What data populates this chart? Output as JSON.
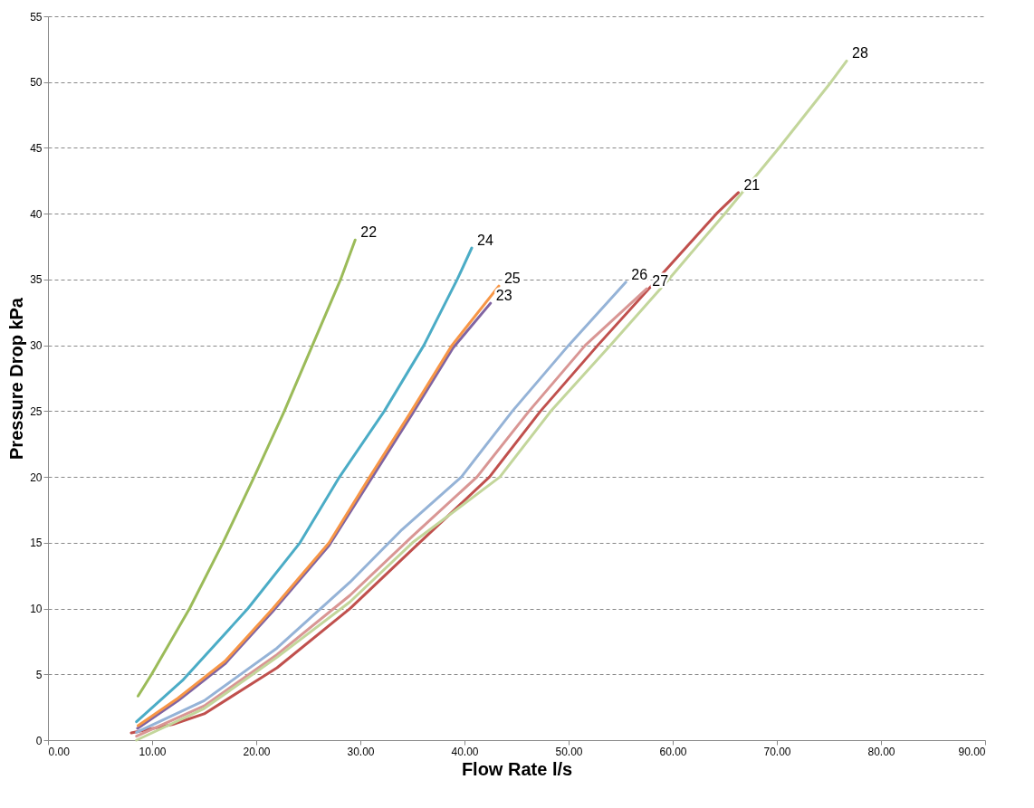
{
  "chart_data": {
    "type": "line",
    "xlabel": "Flow Rate l/s",
    "ylabel": "Pressure Drop kPa",
    "xlim": [
      0,
      90
    ],
    "xticks": [
      {
        "value": 0,
        "label": "0.00"
      },
      {
        "value": 10,
        "label": "10.00"
      },
      {
        "value": 20,
        "label": "20.00"
      },
      {
        "value": 30,
        "label": "30.00"
      },
      {
        "value": 40,
        "label": "40.00"
      },
      {
        "value": 50,
        "label": "50.00"
      },
      {
        "value": 60,
        "label": "60.00"
      },
      {
        "value": 70,
        "label": "70.00"
      },
      {
        "value": 80,
        "label": "80.00"
      },
      {
        "value": 90,
        "label": "90.00"
      }
    ],
    "ylim": [
      0,
      55
    ],
    "yticks": [
      0,
      5,
      10,
      15,
      20,
      25,
      30,
      35,
      40,
      45,
      50,
      55
    ],
    "grid": "y",
    "legend": false,
    "marker": "none",
    "line_style": "solid",
    "series": [
      {
        "name": "21",
        "color": "#c0504d",
        "x": [
          8,
          12,
          15,
          22,
          29,
          35,
          42.4,
          47.3,
          52.8,
          58.5,
          64.2,
          66.3
        ],
        "values": [
          0.55,
          1.2,
          2,
          5.5,
          10,
          14.5,
          20,
          25,
          30,
          35,
          40,
          41.6
        ]
      },
      {
        "name": "22",
        "color": "#9bbb59",
        "x": [
          8.65,
          9.95,
          13.6,
          16.8,
          19.8,
          22.7,
          25.4,
          28.1,
          29.5
        ],
        "values": [
          3.35,
          5,
          10,
          15,
          20,
          25,
          30,
          35,
          38
        ]
      },
      {
        "name": "23",
        "color": "#8064a2",
        "x": [
          8.6,
          12.5,
          17,
          21.6,
          27,
          31,
          35,
          38.9,
          42.5
        ],
        "values": [
          0.9,
          3,
          5.8,
          9.8,
          14.8,
          19.8,
          24.8,
          29.8,
          33.2
        ]
      },
      {
        "name": "24",
        "color": "#4bacc6",
        "x": [
          8.5,
          13,
          19.2,
          24.2,
          28,
          32.3,
          36.1,
          39.3,
          40.7
        ],
        "values": [
          1.4,
          4.6,
          10,
          15,
          20,
          25,
          30,
          35,
          37.4
        ]
      },
      {
        "name": "25",
        "color": "#f79646",
        "x": [
          8.65,
          12.5,
          17,
          21.6,
          27,
          30.9,
          34.9,
          38.8,
          43.3
        ],
        "values": [
          1.1,
          3.2,
          6,
          10,
          15,
          20,
          25,
          30,
          34.5
        ]
      },
      {
        "name": "26",
        "color": "#95b3d7",
        "x": [
          8.5,
          15,
          22,
          29,
          34,
          39.7,
          44.6,
          50,
          55.5
        ],
        "values": [
          0.6,
          3,
          7,
          12,
          16,
          20,
          25,
          30,
          34.8
        ]
      },
      {
        "name": "27",
        "color": "#d99694",
        "x": [
          8.5,
          15,
          22,
          29,
          35,
          41.2,
          46.2,
          51.6,
          57.5
        ],
        "values": [
          0.3,
          2.6,
          6.5,
          11,
          15.5,
          20,
          25,
          30,
          34.3
        ]
      },
      {
        "name": "28",
        "color": "#c3d69b",
        "x": [
          8.5,
          15,
          22,
          29,
          35,
          43.4,
          48.3,
          54,
          59.6,
          65,
          70.2,
          75.2,
          76.7
        ],
        "values": [
          0,
          2.4,
          6.3,
          10.5,
          15,
          20,
          25,
          30,
          35,
          40,
          45,
          50,
          51.6
        ]
      }
    ]
  }
}
